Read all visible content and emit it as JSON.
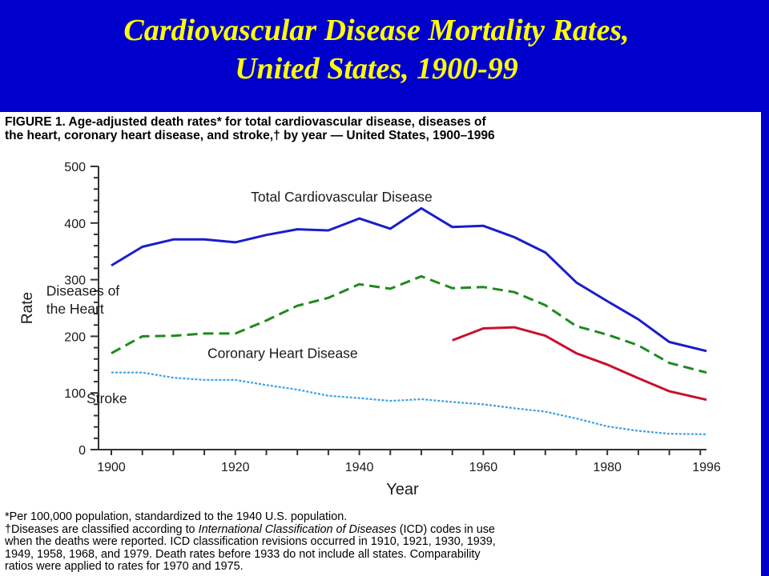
{
  "slide": {
    "title_line1": "Cardiovascular Disease Mortality Rates,",
    "title_line2": "United States, 1900-99",
    "background": "#0000cc",
    "title_color": "#ffff00"
  },
  "figure": {
    "caption_line1": "FIGURE 1. Age-adjusted death rates* for total cardiovascular disease, diseases of",
    "caption_line2": "the heart, coronary heart disease, and stroke,† by year — United States, 1900–1996",
    "footnote_1": "*Per 100,000 population, standardized to the 1940 U.S. population.",
    "footnote_2_prefix": "†Diseases are classified according to ",
    "footnote_2_italic": "International Classification of Diseases",
    "footnote_2_suffix": " (ICD) codes in use",
    "footnote_3": "when the deaths were reported. ICD classification revisions occurred in 1910, 1921, 1930, 1939,",
    "footnote_4": "1949, 1958, 1968, and 1979. Death rates before 1933 do not include all states. Comparability",
    "footnote_5": "ratios were applied to rates for 1970 and 1975."
  },
  "chart_data": {
    "type": "line",
    "title": "",
    "xlabel": "Year",
    "ylabel": "Rate",
    "xlim": [
      1900,
      1996
    ],
    "ylim": [
      0,
      500
    ],
    "x_ticks": [
      1900,
      1920,
      1940,
      1960,
      1980,
      1996
    ],
    "y_ticks": [
      0,
      100,
      200,
      300,
      400,
      500
    ],
    "grid": false,
    "legend": "inline labels",
    "series": [
      {
        "name": "Total Cardiovascular Disease",
        "color": "#1c1ccc",
        "style": "solid",
        "x": [
          1900,
          1905,
          1910,
          1915,
          1920,
          1925,
          1930,
          1935,
          1940,
          1945,
          1950,
          1955,
          1960,
          1965,
          1970,
          1975,
          1980,
          1985,
          1990,
          1996
        ],
        "y": [
          325,
          358,
          371,
          371,
          366,
          379,
          389,
          387,
          408,
          390,
          426,
          393,
          395,
          375,
          348,
          295,
          262,
          230,
          190,
          174
        ]
      },
      {
        "name": "Diseases of the Heart",
        "color": "#1e8a1e",
        "style": "dashed",
        "x": [
          1900,
          1905,
          1910,
          1915,
          1920,
          1925,
          1930,
          1935,
          1940,
          1945,
          1950,
          1955,
          1960,
          1965,
          1970,
          1975,
          1980,
          1985,
          1990,
          1996
        ],
        "y": [
          170,
          200,
          201,
          205,
          205,
          228,
          254,
          268,
          292,
          284,
          306,
          285,
          287,
          278,
          255,
          218,
          203,
          184,
          153,
          136
        ]
      },
      {
        "name": "Coronary Heart Disease",
        "color": "#c8102e",
        "style": "solid",
        "x": [
          1955,
          1960,
          1965,
          1970,
          1975,
          1980,
          1985,
          1990,
          1996
        ],
        "y": [
          193,
          214,
          216,
          201,
          170,
          150,
          126,
          103,
          88
        ]
      },
      {
        "name": "Stroke",
        "color": "#3aa0e8",
        "style": "dotted",
        "x": [
          1900,
          1905,
          1910,
          1915,
          1920,
          1925,
          1930,
          1935,
          1940,
          1945,
          1950,
          1955,
          1960,
          1965,
          1970,
          1975,
          1980,
          1985,
          1990,
          1996
        ],
        "y": [
          136,
          136,
          127,
          123,
          123,
          114,
          106,
          95,
          91,
          86,
          89,
          84,
          80,
          73,
          67,
          55,
          41,
          33,
          28,
          27
        ]
      }
    ],
    "annotations": [
      {
        "text": "Total Cardiovascular Disease",
        "x": 1922.5,
        "y": 438
      },
      {
        "text": "Diseases of",
        "x": 1889.5,
        "y": 272
      },
      {
        "text": "the Heart",
        "x": 1889.5,
        "y": 240
      },
      {
        "text": "Coronary Heart Disease",
        "x": 1915.5,
        "y": 162
      },
      {
        "text": "Stroke",
        "x": 1896,
        "y": 82
      }
    ]
  }
}
